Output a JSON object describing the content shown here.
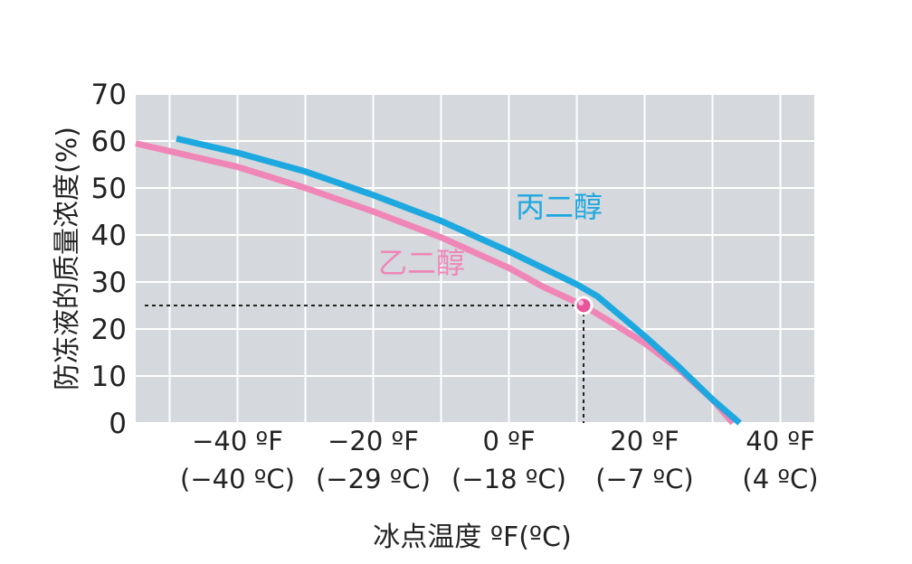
{
  "chart_data": {
    "type": "line",
    "ylabel": "防冻液的质量浓度(%)",
    "xlabel": "冰点温度 ºF(ºC)",
    "ylim": [
      0,
      70
    ],
    "xlim": [
      -55,
      45
    ],
    "yticks": [
      "0",
      "10",
      "20",
      "30",
      "40",
      "50",
      "60",
      "70"
    ],
    "xticks": [
      {
        "x": -40,
        "line1": "−40 ºF",
        "line2": "(−40 ºC)"
      },
      {
        "x": -20,
        "line1": "−20 ºF",
        "line2": "(−29 ºC)"
      },
      {
        "x": 0,
        "line1": "0 ºF",
        "line2": "(−18 ºC)"
      },
      {
        "x": 20,
        "line1": "20 ºF",
        "line2": "(−7 ºC)"
      },
      {
        "x": 40,
        "line1": "40 ºF",
        "line2": "(4 ºC)"
      }
    ],
    "grid": true,
    "series": [
      {
        "name": "丙二醇",
        "color": "#1ea8e0",
        "x": [
          -49,
          -40,
          -30,
          -20,
          -10,
          0,
          10,
          13,
          20,
          25,
          30,
          34
        ],
        "y": [
          60.5,
          57.5,
          53.5,
          48.5,
          43,
          36.5,
          29.5,
          27,
          18.5,
          12,
          5,
          0
        ]
      },
      {
        "name": "乙二醇",
        "color": "#ef86b7",
        "x": [
          -55,
          -40,
          -30,
          -20,
          -10,
          0,
          5,
          11,
          15,
          20,
          25,
          30,
          33
        ],
        "y": [
          59.5,
          54.5,
          50,
          45,
          39.5,
          33,
          29,
          25,
          21.5,
          17,
          11.5,
          5,
          0
        ]
      }
    ],
    "annotation": {
      "x": 11,
      "y": 25,
      "color": "#e8559a"
    }
  }
}
